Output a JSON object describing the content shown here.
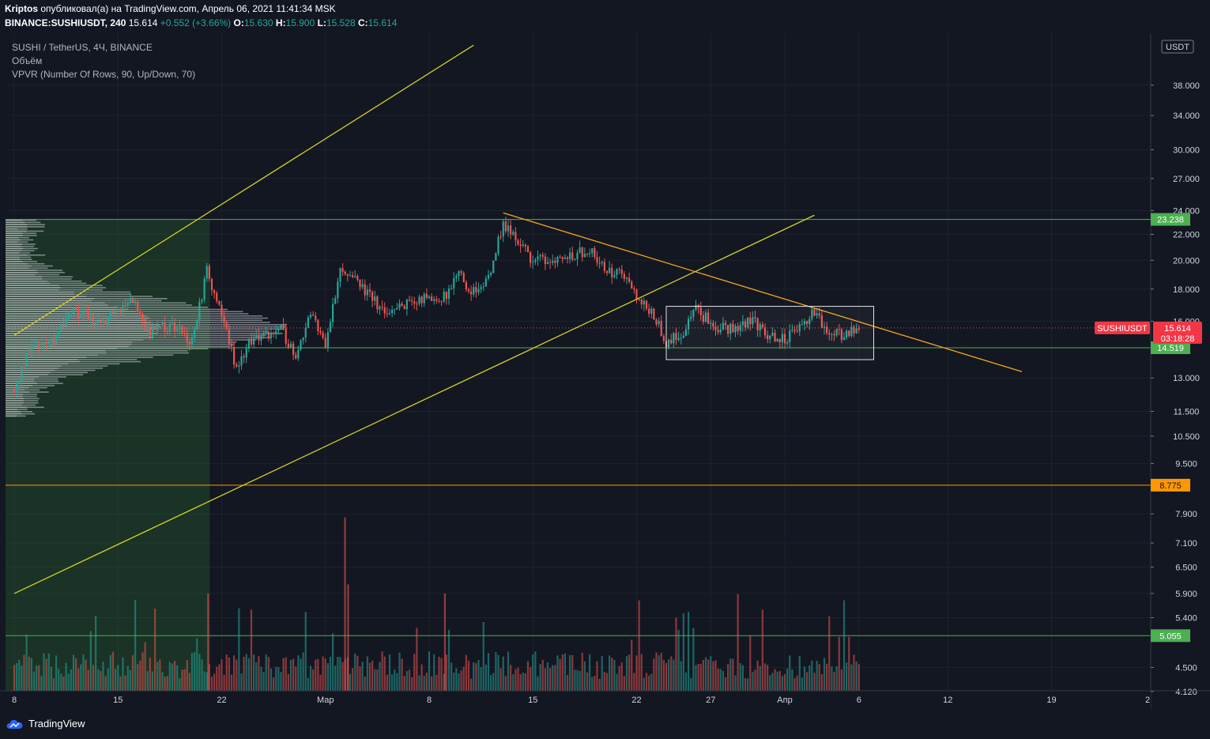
{
  "header": {
    "author": "Kriptos",
    "published_text": "опубликовал(а) на TradingView.com, Апрель 06, 2021 11:41:34 MSK",
    "symbol_full": "BINANCE:SUSHIUSDT, 240",
    "last": "15.614",
    "change": "+0.552 (+3.66%)",
    "o_label": "O:",
    "o_value": "15.630",
    "h_label": "H:",
    "h_value": "15.900",
    "l_label": "L:",
    "l_value": "15.528",
    "c_label": "C:",
    "c_value": "15.614"
  },
  "legend": {
    "title": "SUSHI / TetherUS, 4Ч, BINANCE",
    "volume": "Объём",
    "vpvr": "VPVR (Number Of Rows, 90, Up/Down, 70)"
  },
  "footer": {
    "brand": "TradingView"
  },
  "colors": {
    "background": "#131722",
    "up": "#26a69a",
    "down": "#ef5350",
    "channel": "#d4d02a",
    "trend": "#f5a623",
    "level": "#4caf50",
    "support_orange": "#ff9800",
    "price_tag": "#f23645"
  },
  "chart_data": {
    "type": "candlestick",
    "y_scale": "log",
    "ylim": [
      4.0,
      43.0
    ],
    "currency_label": "USDT",
    "y_ticks": [
      {
        "value": 38.0,
        "label": "38.000"
      },
      {
        "value": 34.0,
        "label": "34.000"
      },
      {
        "value": 30.0,
        "label": "30.000"
      },
      {
        "value": 27.0,
        "label": "27.000"
      },
      {
        "value": 24.0,
        "label": "24.000"
      },
      {
        "value": 22.0,
        "label": "22.000"
      },
      {
        "value": 20.0,
        "label": "20.000"
      },
      {
        "value": 18.0,
        "label": "18.000"
      },
      {
        "value": 16.0,
        "label": "16.000"
      },
      {
        "value": 13.0,
        "label": "13.000"
      },
      {
        "value": 11.5,
        "label": "11.500"
      },
      {
        "value": 10.5,
        "label": "10.500"
      },
      {
        "value": 9.5,
        "label": "9.500"
      },
      {
        "value": 7.9,
        "label": "7.900"
      },
      {
        "value": 7.1,
        "label": "7.100"
      },
      {
        "value": 6.5,
        "label": "6.500"
      },
      {
        "value": 5.9,
        "label": "5.900"
      },
      {
        "value": 5.4,
        "label": "5.400"
      },
      {
        "value": 4.5,
        "label": "4.500"
      },
      {
        "value": 4.12,
        "label": "4.120"
      }
    ],
    "x_ticks": [
      {
        "date": "2021-02-08",
        "label": "8"
      },
      {
        "date": "2021-02-15",
        "label": "15"
      },
      {
        "date": "2021-02-22",
        "label": "22"
      },
      {
        "date": "2021-03-01",
        "label": "Мар"
      },
      {
        "date": "2021-03-08",
        "label": "8"
      },
      {
        "date": "2021-03-15",
        "label": "15"
      },
      {
        "date": "2021-03-22",
        "label": "22"
      },
      {
        "date": "2021-03-27",
        "label": "27"
      },
      {
        "date": "2021-04-01",
        "label": "Апр"
      },
      {
        "date": "2021-04-06",
        "label": "6"
      },
      {
        "date": "2021-04-12",
        "label": "12"
      },
      {
        "date": "2021-04-19",
        "label": "19"
      },
      {
        "date": "2021-04-26",
        "label": "2"
      }
    ],
    "price_path": [
      [
        "2021-02-08",
        12.4
      ],
      [
        "2021-02-09",
        14.5
      ],
      [
        "2021-02-11",
        15.2
      ],
      [
        "2021-02-12",
        16.6
      ],
      [
        "2021-02-14",
        16.0
      ],
      [
        "2021-02-16",
        17.3
      ],
      [
        "2021-02-17",
        15.4
      ],
      [
        "2021-02-19",
        15.8
      ],
      [
        "2021-02-20",
        14.8
      ],
      [
        "2021-02-21",
        19.2
      ],
      [
        "2021-02-22",
        16.3
      ],
      [
        "2021-02-23",
        13.5
      ],
      [
        "2021-02-24",
        15.0
      ],
      [
        "2021-02-26",
        15.5
      ],
      [
        "2021-02-27",
        14.2
      ],
      [
        "2021-02-28",
        16.5
      ],
      [
        "2021-03-01",
        14.8
      ],
      [
        "2021-03-02",
        19.5
      ],
      [
        "2021-03-03",
        18.5
      ],
      [
        "2021-03-05",
        16.5
      ],
      [
        "2021-03-07",
        17.3
      ],
      [
        "2021-03-09",
        17.5
      ],
      [
        "2021-03-10",
        19.0
      ],
      [
        "2021-03-11",
        17.8
      ],
      [
        "2021-03-12",
        18.9
      ],
      [
        "2021-03-13",
        22.8
      ],
      [
        "2021-03-14",
        21.5
      ],
      [
        "2021-03-15",
        20.0
      ],
      [
        "2021-03-17",
        20.2
      ],
      [
        "2021-03-19",
        20.9
      ],
      [
        "2021-03-20",
        19.0
      ],
      [
        "2021-03-21",
        19.2
      ],
      [
        "2021-03-22",
        17.3
      ],
      [
        "2021-03-23",
        16.7
      ],
      [
        "2021-03-24",
        14.8
      ],
      [
        "2021-03-25",
        15.2
      ],
      [
        "2021-03-26",
        16.7
      ],
      [
        "2021-03-27",
        15.9
      ],
      [
        "2021-03-28",
        15.5
      ],
      [
        "2021-03-30",
        16.0
      ],
      [
        "2021-03-31",
        15.0
      ],
      [
        "2021-04-01",
        15.0
      ],
      [
        "2021-04-02",
        15.6
      ],
      [
        "2021-04-03",
        16.5
      ],
      [
        "2021-04-04",
        15.2
      ],
      [
        "2021-04-05",
        15.3
      ],
      [
        "2021-04-06",
        15.614
      ]
    ],
    "volume_spikes": [
      [
        "2021-03-02",
        7.8
      ],
      [
        "2021-03-02",
        6.1
      ],
      [
        "2021-03-09",
        5.9
      ],
      [
        "2021-02-21",
        5.9
      ]
    ],
    "horizontal_levels": [
      {
        "value": 23.238,
        "label": "23.238",
        "color": "#4caf50"
      },
      {
        "value": 14.519,
        "label": "14.519",
        "color": "#4caf50"
      },
      {
        "value": 8.775,
        "label": "8.775",
        "color": "#ff9800"
      },
      {
        "value": 5.055,
        "label": "5.055",
        "color": "#4caf50"
      }
    ],
    "trend_lines": [
      {
        "from": [
          "2021-02-08",
          15.2
        ],
        "to": [
          "2021-03-11",
          44.0
        ],
        "color": "#d4d02a"
      },
      {
        "from": [
          "2021-02-08",
          5.9
        ],
        "to": [
          "2021-04-03",
          23.6
        ],
        "color": "#d4d02a"
      },
      {
        "from": [
          "2021-03-13",
          23.8
        ],
        "to": [
          "2021-04-17",
          13.3
        ],
        "color": "#f5a623"
      }
    ],
    "range_box": {
      "from": [
        "2021-03-24",
        16.9
      ],
      "to": [
        "2021-04-07",
        13.9
      ]
    },
    "current_price": {
      "symbol": "SUSHIUSDT",
      "value": "15.614",
      "countdown": "03:18:28"
    }
  }
}
